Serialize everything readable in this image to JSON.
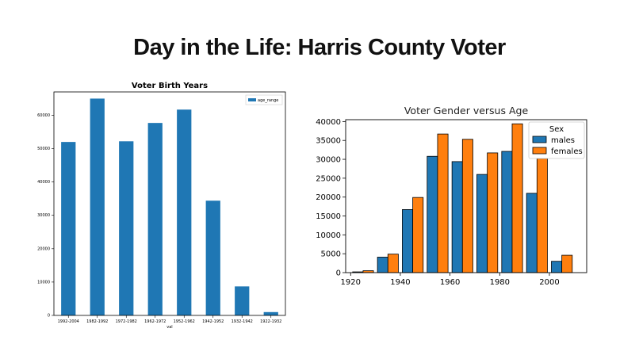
{
  "slide": {
    "title": "Day in the Life: Harris County Voter"
  },
  "colors": {
    "blue": "#1f77b4",
    "orange": "#ff7f0e",
    "edge": "#000000"
  },
  "chart_data": [
    {
      "type": "bar",
      "title": "Voter Birth Years",
      "xlabel": "val",
      "ylabel": "",
      "categories": [
        "1992-2004",
        "1982-1992",
        "1972-1982",
        "1962-1972",
        "1952-1962",
        "1942-1952",
        "1932-1942",
        "1922-1932"
      ],
      "series": [
        {
          "name": "age_range",
          "values": [
            52000,
            65000,
            52200,
            57700,
            61700,
            34400,
            8700,
            1000
          ]
        }
      ],
      "ylim": [
        0,
        67000
      ],
      "yticks": [
        0,
        10000,
        20000,
        30000,
        40000,
        50000,
        60000
      ],
      "legend": "top-right",
      "grid": false
    },
    {
      "type": "bar",
      "title": "Voter Gender versus Age",
      "xlabel": "",
      "ylabel": "",
      "x": [
        1925,
        1935,
        1945,
        1955,
        1965,
        1975,
        1985,
        1995,
        2005
      ],
      "series": [
        {
          "name": "males",
          "values": [
            200,
            4100,
            16700,
            30800,
            29400,
            26000,
            32100,
            21000,
            3000
          ]
        },
        {
          "name": "females",
          "values": [
            500,
            4900,
            19900,
            36700,
            35300,
            31700,
            39400,
            30200,
            4600
          ]
        }
      ],
      "xlim": [
        1918,
        2015
      ],
      "ylim": [
        0,
        40500
      ],
      "xticks": [
        1920,
        1940,
        1960,
        1980,
        2000
      ],
      "yticks": [
        0,
        5000,
        10000,
        15000,
        20000,
        25000,
        30000,
        35000,
        40000
      ],
      "legend_title": "Sex",
      "legend": "top-right",
      "grid": false
    }
  ]
}
